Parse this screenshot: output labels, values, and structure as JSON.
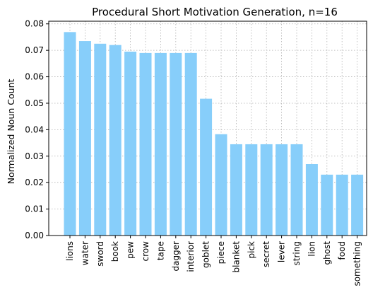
{
  "chart_data": {
    "type": "bar",
    "title": "Procedural Short Motivation Generation, n=16",
    "xlabel": "",
    "ylabel": "Normalized Noun Count",
    "categories": [
      "lions",
      "water",
      "sword",
      "book",
      "pew",
      "crow",
      "tape",
      "dagger",
      "interior",
      "goblet",
      "piece",
      "blanket",
      "pick",
      "secret",
      "lever",
      "string",
      "lion",
      "ghost",
      "food",
      "something"
    ],
    "values": [
      0.0769,
      0.0735,
      0.0725,
      0.072,
      0.0695,
      0.069,
      0.069,
      0.069,
      0.069,
      0.0517,
      0.0383,
      0.0345,
      0.0345,
      0.0345,
      0.0345,
      0.0345,
      0.027,
      0.023,
      0.023,
      0.023
    ],
    "ylim": [
      0,
      0.081
    ],
    "yticks": [
      "0.00",
      "0.01",
      "0.02",
      "0.03",
      "0.04",
      "0.05",
      "0.06",
      "0.07",
      "0.08"
    ],
    "grid": true,
    "bar_color": "#87cefa"
  }
}
